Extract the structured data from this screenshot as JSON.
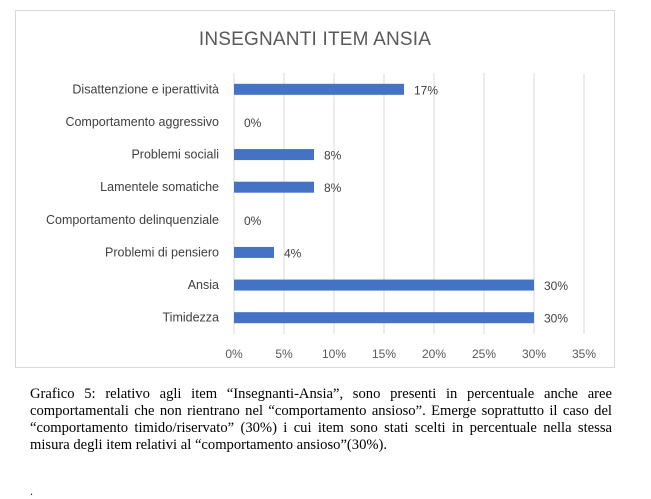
{
  "chart_data": {
    "type": "bar",
    "orientation": "horizontal",
    "title": "INSEGNANTI ITEM ANSIA",
    "categories": [
      "Disattenzione e iperattività",
      "Comportamento aggressivo",
      "Problemi sociali",
      "Lamentele somatiche",
      "Comportamento delinquenziale",
      "Problemi di pensiero",
      "Ansia",
      "Timidezza"
    ],
    "values": [
      17,
      0,
      8,
      8,
      0,
      4,
      30,
      30
    ],
    "data_labels": [
      "17%",
      "0%",
      "8%",
      "8%",
      "0%",
      "4%",
      "30%",
      "30%"
    ],
    "xlim": [
      0,
      35
    ],
    "xticks": [
      "0%",
      "5%",
      "10%",
      "15%",
      "20%",
      "25%",
      "30%",
      "35%"
    ],
    "grid": "vertical",
    "bar_color": "#4472c4"
  },
  "caption": "Grafico 5: relativo agli item “Insegnanti-Ansia”, sono presenti in percentuale anche aree comportamentali che non rientrano nel “comportamento ansioso”. Emerge soprattutto il caso del “comportamento timido/riservato” (30%) i cui item sono stati scelti in percentuale nella stessa misura degli item relativi al “comportamento ansioso”(30%).",
  "trailing_mark": "."
}
